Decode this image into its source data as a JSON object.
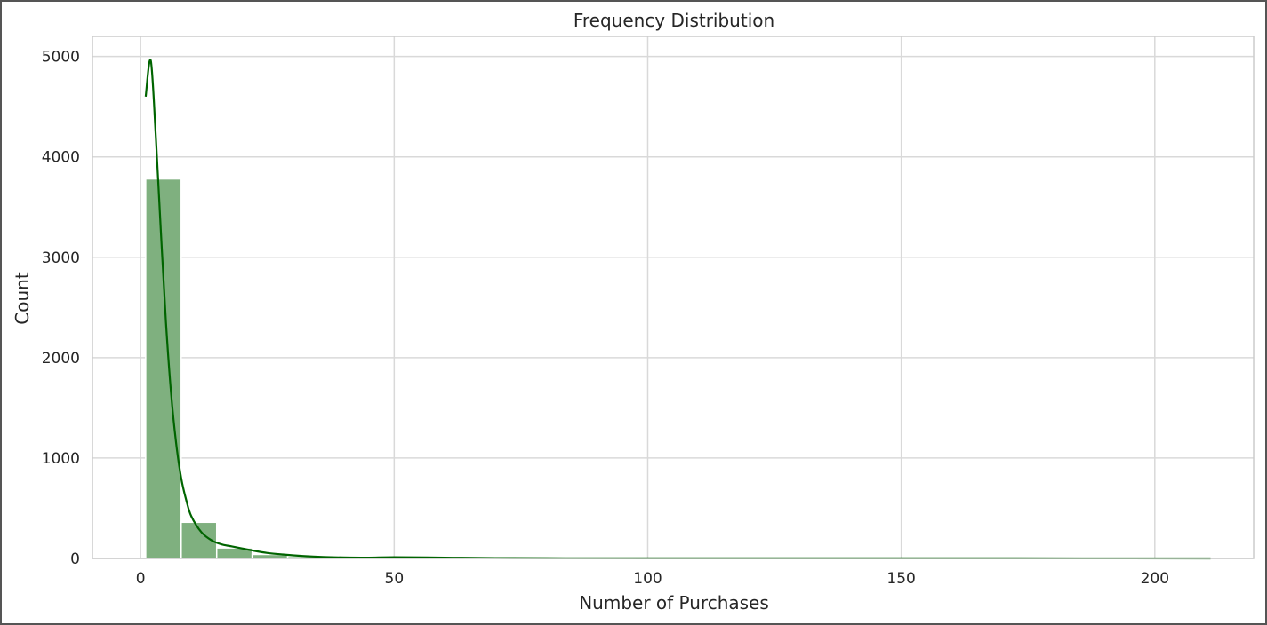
{
  "chart_data": {
    "type": "bar",
    "title": "Frequency Distribution",
    "xlabel": "Number of Purchases",
    "ylabel": "Count",
    "xlim": [
      -9.5,
      219.5
    ],
    "ylim": [
      0,
      5200
    ],
    "x_ticks": [
      0,
      50,
      100,
      150,
      200
    ],
    "y_ticks": [
      0,
      1000,
      2000,
      3000,
      4000,
      5000
    ],
    "grid": true,
    "bar_color": "#7fb07f",
    "bar_edge": "#ffffff",
    "kde_color": "#006400",
    "bins": [
      {
        "x0": 1,
        "x1": 8,
        "count": 3780
      },
      {
        "x0": 8,
        "x1": 15,
        "count": 360
      },
      {
        "x0": 15,
        "x1": 22,
        "count": 105
      },
      {
        "x0": 22,
        "x1": 29,
        "count": 40
      },
      {
        "x0": 29,
        "x1": 36,
        "count": 20
      },
      {
        "x0": 36,
        "x1": 43,
        "count": 12
      },
      {
        "x0": 43,
        "x1": 50,
        "count": 10
      },
      {
        "x0": 50,
        "x1": 57,
        "count": 12
      },
      {
        "x0": 57,
        "x1": 64,
        "count": 8
      },
      {
        "x0": 64,
        "x1": 71,
        "count": 4
      },
      {
        "x0": 71,
        "x1": 78,
        "count": 3
      },
      {
        "x0": 78,
        "x1": 85,
        "count": 2
      },
      {
        "x0": 85,
        "x1": 92,
        "count": 2
      },
      {
        "x0": 92,
        "x1": 99,
        "count": 1
      },
      {
        "x0": 99,
        "x1": 106,
        "count": 1
      },
      {
        "x0": 106,
        "x1": 113,
        "count": 1
      },
      {
        "x0": 113,
        "x1": 120,
        "count": 1
      },
      {
        "x0": 120,
        "x1": 127,
        "count": 1
      },
      {
        "x0": 127,
        "x1": 134,
        "count": 1
      },
      {
        "x0": 134,
        "x1": 141,
        "count": 1
      },
      {
        "x0": 141,
        "x1": 148,
        "count": 1
      },
      {
        "x0": 148,
        "x1": 155,
        "count": 1
      },
      {
        "x0": 155,
        "x1": 162,
        "count": 1
      },
      {
        "x0": 162,
        "x1": 169,
        "count": 1
      },
      {
        "x0": 169,
        "x1": 176,
        "count": 1
      },
      {
        "x0": 176,
        "x1": 183,
        "count": 1
      },
      {
        "x0": 183,
        "x1": 190,
        "count": 1
      },
      {
        "x0": 190,
        "x1": 197,
        "count": 1
      },
      {
        "x0": 197,
        "x1": 204,
        "count": 1
      },
      {
        "x0": 204,
        "x1": 211,
        "count": 1
      }
    ],
    "kde": {
      "x": [
        1,
        2,
        3,
        4,
        5,
        6,
        7,
        8,
        9,
        10,
        12,
        14,
        16,
        18,
        20,
        22,
        25,
        28,
        32,
        36,
        40,
        45,
        50,
        60,
        70,
        80,
        100,
        130,
        170,
        211
      ],
      "y": [
        4600,
        4960,
        4200,
        3250,
        2350,
        1650,
        1150,
        800,
        580,
        420,
        260,
        180,
        140,
        120,
        100,
        80,
        55,
        40,
        25,
        15,
        10,
        8,
        12,
        8,
        4,
        2,
        1,
        1,
        1,
        0
      ]
    }
  }
}
